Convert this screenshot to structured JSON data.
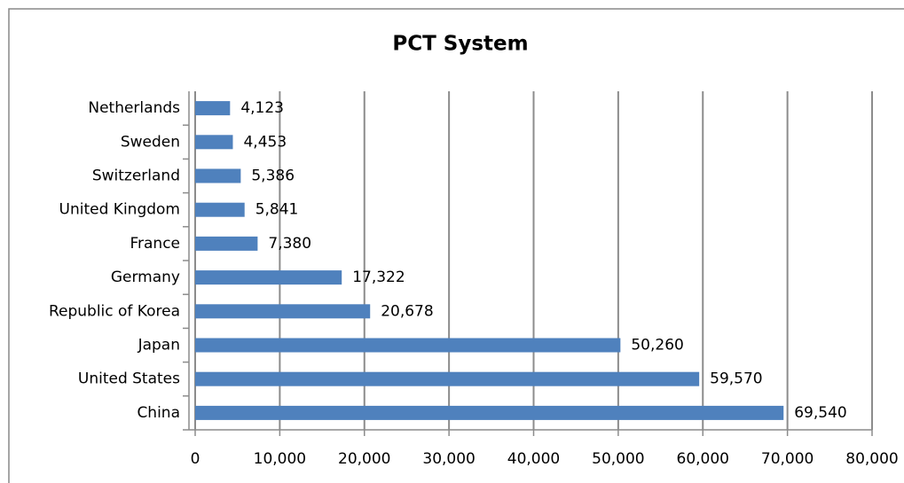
{
  "chart_data": {
    "type": "bar",
    "orientation": "horizontal",
    "title": "PCT System",
    "categories": [
      "China",
      "United States",
      "Japan",
      "Republic of Korea",
      "Germany",
      "France",
      "United Kingdom",
      "Switzerland",
      "Sweden",
      "Netherlands"
    ],
    "values": [
      69540,
      59570,
      50260,
      20678,
      17322,
      7380,
      5841,
      5386,
      4453,
      4123
    ],
    "value_labels": [
      "69,540",
      "59,570",
      "50,260",
      "20,678",
      "17,322",
      "7,380",
      "5,841",
      "5,386",
      "4,453",
      "4,123"
    ],
    "color": "#4f81bd",
    "xlim": [
      0,
      80000
    ],
    "xticks": [
      0,
      {
        "value": 10000,
        "label": "10,000"
      },
      {
        "value": 20000,
        "label": "20,000"
      },
      {
        "value": 30000,
        "label": "30,000"
      },
      {
        "value": 40000,
        "label": "40,000"
      },
      {
        "value": 50000,
        "label": "50,000"
      },
      {
        "value": 60000,
        "label": "60,000"
      },
      {
        "value": 70000,
        "label": "70,000"
      },
      {
        "value": 80000,
        "label": "80,000"
      }
    ],
    "grid": true
  }
}
